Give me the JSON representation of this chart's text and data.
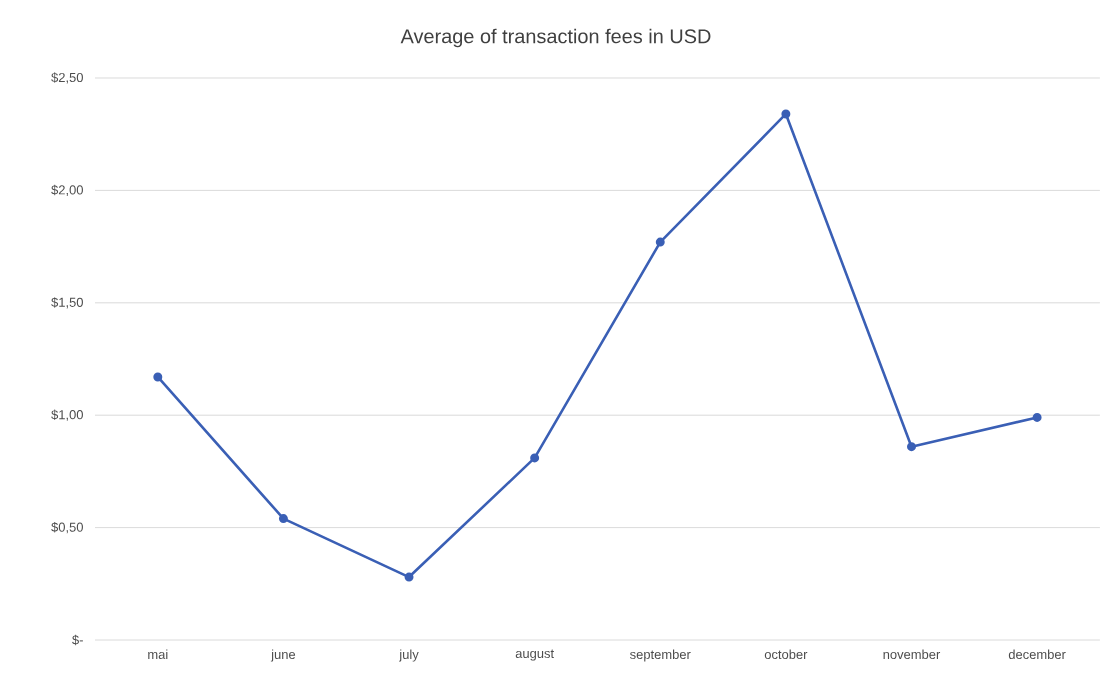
{
  "chart_data": {
    "type": "line",
    "title": "Average of transaction fees in USD",
    "categories": [
      "mai",
      "june",
      "july",
      "august",
      "september",
      "october",
      "november",
      "december"
    ],
    "series": [
      {
        "color": "#3a5fb5",
        "values": [
          1.17,
          0.54,
          0.28,
          0.81,
          1.77,
          2.34,
          0.86,
          0.99
        ]
      }
    ],
    "ylim": [
      0,
      2.5
    ],
    "yticks": [
      {
        "value": 0,
        "label": "$-"
      },
      {
        "value": 0.5,
        "label": "$0,50"
      },
      {
        "value": 1.0,
        "label": "$1,00"
      },
      {
        "value": 1.5,
        "label": "$1,50"
      },
      {
        "value": 2.0,
        "label": "$2,00"
      },
      {
        "value": 2.5,
        "label": "$2,50"
      }
    ],
    "grid": "y",
    "marker": "circle",
    "line_style": "solid"
  }
}
